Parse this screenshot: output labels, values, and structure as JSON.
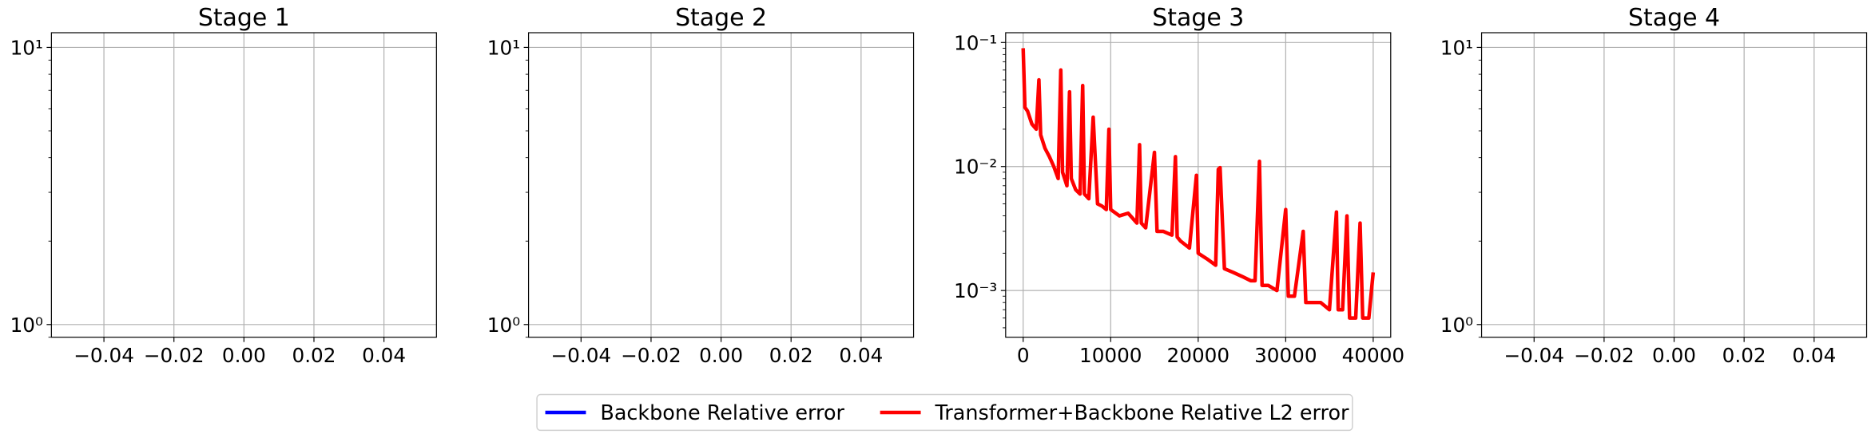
{
  "chart_data": [
    {
      "type": "line",
      "title": "Stage 1",
      "log_y": true,
      "grid": true,
      "xlim": [
        -0.055,
        0.055
      ],
      "xticks": [
        {
          "value": -0.04,
          "label": "−0.04"
        },
        {
          "value": -0.02,
          "label": "−0.02"
        },
        {
          "value": 0,
          "label": "0.00"
        },
        {
          "value": 0.02,
          "label": "0.02"
        },
        {
          "value": 0.04,
          "label": "0.04"
        }
      ],
      "ylim": [
        0.9,
        11.3
      ],
      "yticks": [
        {
          "value": 1,
          "label": "10⁰"
        },
        {
          "value": 10,
          "label": "10¹"
        }
      ],
      "series": []
    },
    {
      "type": "line",
      "title": "Stage 2",
      "log_y": true,
      "grid": true,
      "xlim": [
        -0.055,
        0.055
      ],
      "xticks": [
        {
          "value": -0.04,
          "label": "−0.04"
        },
        {
          "value": -0.02,
          "label": "−0.02"
        },
        {
          "value": 0,
          "label": "0.00"
        },
        {
          "value": 0.02,
          "label": "0.02"
        },
        {
          "value": 0.04,
          "label": "0.04"
        }
      ],
      "ylim": [
        0.9,
        11.3
      ],
      "yticks": [
        {
          "value": 1,
          "label": "10⁰"
        },
        {
          "value": 10,
          "label": "10¹"
        }
      ],
      "series": []
    },
    {
      "type": "line",
      "title": "Stage 3",
      "log_y": true,
      "grid": true,
      "xlim": [
        -2000,
        42000
      ],
      "xticks": [
        0,
        10000,
        20000,
        30000,
        40000
      ],
      "ylim": [
        0.00042,
        0.12
      ],
      "yticks": [
        {
          "value": 0.001,
          "label": "10⁻³"
        },
        {
          "value": 0.01,
          "label": "10⁻²"
        },
        {
          "value": 0.1,
          "label": "10⁻¹"
        }
      ],
      "x": [
        0,
        200,
        500,
        1000,
        1500,
        1800,
        2000,
        2500,
        3000,
        3500,
        4000,
        4300,
        4500,
        5000,
        5300,
        5500,
        6000,
        6500,
        6800,
        7000,
        7500,
        8000,
        8500,
        9000,
        9500,
        9800,
        10000,
        11000,
        12000,
        13000,
        13300,
        13500,
        14000,
        15000,
        15300,
        16000,
        17000,
        17400,
        17600,
        18000,
        19000,
        19800,
        20000,
        21000,
        22000,
        22300,
        22500,
        23000,
        24000,
        25000,
        26000,
        26500,
        27000,
        27300,
        28000,
        29000,
        30000,
        30300,
        31000,
        32000,
        32300,
        33000,
        34000,
        35000,
        35800,
        36000,
        36500,
        37000,
        37300,
        38000,
        38500,
        38800,
        39000,
        39500,
        40000
      ],
      "series": [
        {
          "name": "Transformer+Backbone Relative L2 error",
          "color": "#ff0000",
          "values": [
            0.09,
            0.03,
            0.028,
            0.022,
            0.02,
            0.05,
            0.018,
            0.014,
            0.012,
            0.01,
            0.008,
            0.06,
            0.009,
            0.007,
            0.04,
            0.008,
            0.0065,
            0.006,
            0.045,
            0.006,
            0.0055,
            0.025,
            0.005,
            0.0048,
            0.0045,
            0.02,
            0.0045,
            0.004,
            0.0042,
            0.0035,
            0.015,
            0.0035,
            0.0032,
            0.013,
            0.003,
            0.003,
            0.0028,
            0.012,
            0.0027,
            0.0025,
            0.0022,
            0.0085,
            0.002,
            0.0018,
            0.0016,
            0.0095,
            0.0098,
            0.0015,
            0.0014,
            0.0013,
            0.0012,
            0.0012,
            0.011,
            0.0011,
            0.0011,
            0.001,
            0.0045,
            0.0009,
            0.0009,
            0.003,
            0.0008,
            0.0008,
            0.0008,
            0.0007,
            0.0043,
            0.0007,
            0.0007,
            0.004,
            0.0006,
            0.0006,
            0.0035,
            0.0006,
            0.0006,
            0.0006,
            0.0014
          ]
        }
      ]
    },
    {
      "type": "line",
      "title": "Stage 4",
      "log_y": true,
      "grid": true,
      "xlim": [
        -0.055,
        0.055
      ],
      "xticks": [
        {
          "value": -0.04,
          "label": "−0.04"
        },
        {
          "value": -0.02,
          "label": "−0.02"
        },
        {
          "value": 0,
          "label": "0.00"
        },
        {
          "value": 0.02,
          "label": "0.02"
        },
        {
          "value": 0.04,
          "label": "0.04"
        }
      ],
      "ylim": [
        0.9,
        11.3
      ],
      "yticks": [
        {
          "value": 1,
          "label": "10⁰"
        },
        {
          "value": 10,
          "label": "10¹"
        }
      ],
      "series": []
    }
  ],
  "legend": [
    {
      "name": "Backbone Relative error",
      "color": "#0000ff"
    },
    {
      "name": "Transformer+Backbone Relative L2 error",
      "color": "#ff0000"
    }
  ]
}
